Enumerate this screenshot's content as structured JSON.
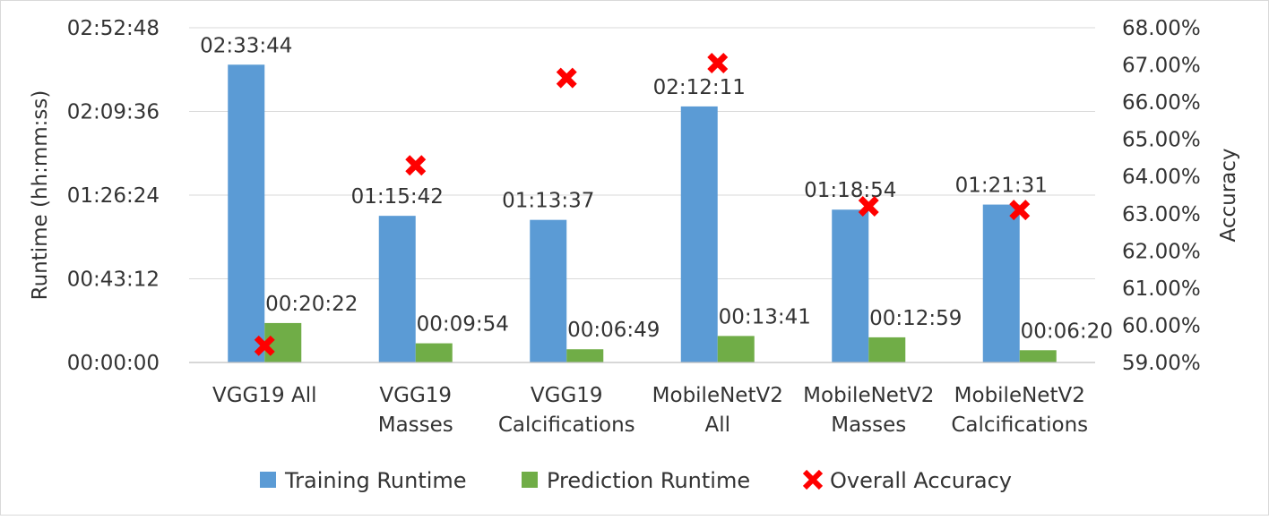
{
  "chart_data": {
    "type": "bar",
    "categories": [
      [
        "VGG19 All"
      ],
      [
        "VGG19",
        "Masses"
      ],
      [
        "VGG19",
        "Calcifications"
      ],
      [
        "MobileNetV2",
        "All"
      ],
      [
        "MobileNetV2",
        "Masses"
      ],
      [
        "MobileNetV2",
        "Calcifications"
      ]
    ],
    "series": [
      {
        "name": "Training Runtime",
        "axis": "left",
        "color": "#5b9bd5",
        "values_seconds": [
          9224,
          4542,
          4417,
          7931,
          4734,
          4891
        ],
        "labels": [
          "02:33:44",
          "01:15:42",
          "01:13:37",
          "02:12:11",
          "01:18:54",
          "01:21:31"
        ]
      },
      {
        "name": "Prediction Runtime",
        "axis": "left",
        "color": "#70ad47",
        "values_seconds": [
          1222,
          594,
          409,
          821,
          779,
          380
        ],
        "labels": [
          "00:20:22",
          "00:09:54",
          "00:06:49",
          "00:13:41",
          "00:12:59",
          "00:06:20"
        ]
      },
      {
        "name": "Overall Accuracy",
        "axis": "right",
        "type": "scatter",
        "marker": "x",
        "color": "#ff0000",
        "values_percent": [
          59.45,
          64.3,
          66.65,
          67.05,
          63.2,
          63.1
        ]
      }
    ],
    "y_left": {
      "label": "Runtime (hh:mm:ss)",
      "min_seconds": 0,
      "max_seconds": 10368,
      "tick_step_seconds": 2592,
      "tick_labels": [
        "00:00:00",
        "00:43:12",
        "01:26:24",
        "02:09:36",
        "02:52:48"
      ]
    },
    "y_right": {
      "label": "Accuracy",
      "min": 59.0,
      "max": 68.0,
      "tick_step": 1.0,
      "tick_labels": [
        "59.00%",
        "60.00%",
        "61.00%",
        "62.00%",
        "63.00%",
        "64.00%",
        "65.00%",
        "66.00%",
        "67.00%",
        "68.00%"
      ]
    },
    "grid": true,
    "legend": {
      "position": "bottom"
    }
  }
}
